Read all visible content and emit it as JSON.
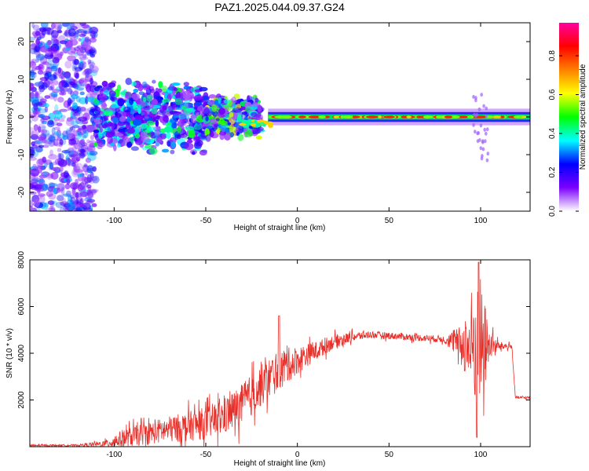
{
  "title": "PAZ1.2025.044.09.37.G24",
  "chart_data": [
    {
      "type": "heatmap",
      "xlabel": "Height of straight line (km)",
      "ylabel": "Frequency (Hz)",
      "xlim": [
        -146,
        127
      ],
      "ylim": [
        -25,
        25
      ],
      "xticks": [
        -100,
        -50,
        0,
        50,
        100
      ],
      "yticks": [
        -20,
        -10,
        0,
        10,
        20
      ],
      "colorbar": {
        "label": "Normalized spectral amplitude",
        "range": [
          0,
          0.97
        ],
        "ticks": [
          0.0,
          0.2,
          0.4,
          0.6,
          0.8
        ],
        "colors": [
          "#ffffff",
          "#7b00ff",
          "#0000ff",
          "#00ffff",
          "#00ff00",
          "#ffff00",
          "#ff8000",
          "#ff0000",
          "#ff00a0"
        ]
      },
      "bands": [
        {
          "x": [
            -146,
            -110
          ],
          "freq_spread": 25,
          "level": 0.2
        },
        {
          "x": [
            -110,
            -50
          ],
          "freq_spread": 10,
          "level": 0.3
        },
        {
          "x": [
            -50,
            -20
          ],
          "freq_spread": 6,
          "level": 0.4
        },
        {
          "x": [
            -20,
            127
          ],
          "freq_spread": 1.5,
          "level": 0.8
        }
      ]
    },
    {
      "type": "line",
      "xlabel": "Height of straight line (km)",
      "ylabel": "SNR (10 * v/v)",
      "xlim": [
        -146,
        127
      ],
      "ylim": [
        0,
        8000
      ],
      "xticks": [
        -100,
        -50,
        0,
        50,
        100
      ],
      "yticks": [
        2000,
        4000,
        6000,
        8000
      ],
      "grid": false,
      "series": [
        {
          "color": "#e8302a",
          "envelope_x": [
            -146,
            -120,
            -105,
            -95,
            -80,
            -65,
            -50,
            -40,
            -30,
            -20,
            -10,
            0,
            10,
            20,
            30,
            40,
            50,
            60,
            70,
            80,
            90,
            95,
            100,
            105,
            110,
            117,
            119,
            127
          ],
          "envelope_y": [
            50,
            60,
            120,
            350,
            600,
            800,
            1000,
            1300,
            1800,
            2600,
            3300,
            3700,
            4100,
            4500,
            4700,
            4800,
            4750,
            4700,
            4650,
            4600,
            4400,
            4300,
            4300,
            4350,
            4300,
            4300,
            2100,
            2100
          ],
          "noise_amp": [
            40,
            40,
            150,
            400,
            500,
            600,
            700,
            800,
            900,
            900,
            900,
            600,
            400,
            300,
            200,
            150,
            150,
            150,
            150,
            150,
            800,
            2500,
            3000,
            600,
            200,
            100,
            60,
            60
          ]
        }
      ]
    }
  ]
}
